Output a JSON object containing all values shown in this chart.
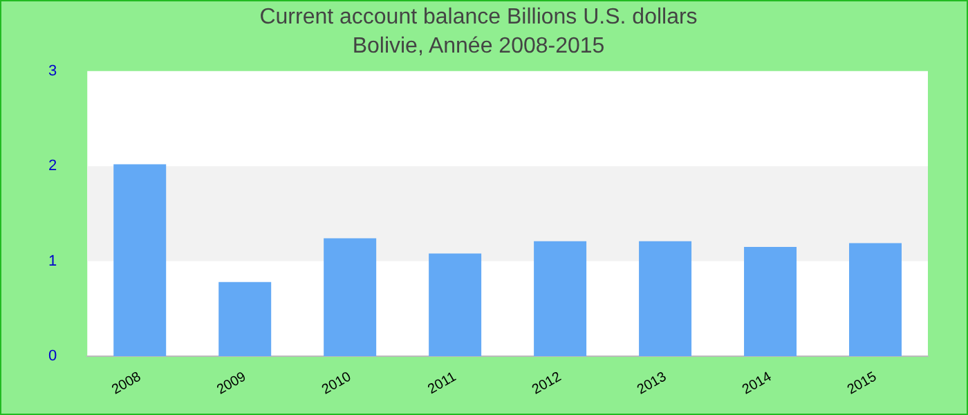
{
  "chart_data": {
    "type": "bar",
    "title": "Current account balance Billions U.S. dollars",
    "subtitle": "Bolivie, Année 2008-2015",
    "categories": [
      "2008",
      "2009",
      "2010",
      "2011",
      "2012",
      "2013",
      "2014",
      "2015"
    ],
    "values": [
      2.02,
      0.78,
      1.24,
      1.08,
      1.21,
      1.21,
      1.15,
      1.19
    ],
    "color": "#63a9f5",
    "ylim": [
      0,
      3
    ],
    "yticks": [
      0,
      1,
      2,
      3
    ],
    "legend": false,
    "bands": [
      {
        "axis": "y",
        "from": 1,
        "to": 2,
        "color": "#f2f2f2"
      }
    ]
  }
}
